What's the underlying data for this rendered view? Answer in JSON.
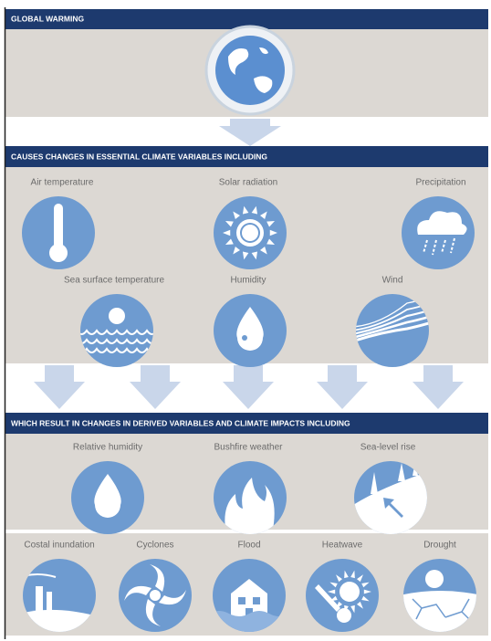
{
  "header": {
    "title": "GLOBAL WARMING"
  },
  "causes": {
    "title": "CAUSES CHANGES IN ESSENTIAL CLIMATE VARIABLES INCLUDING",
    "items": [
      "Air temperature",
      "Solar radiation",
      "Precipitation",
      "Sea surface temperature",
      "Humidity",
      "Wind"
    ]
  },
  "impacts": {
    "title": "WHICH RESULT IN CHANGES IN DERIVED VARIABLES AND CLIMATE IMPACTS INCLUDING",
    "items": [
      "Relative humidity",
      "Bushfire weather",
      "Sea-level rise",
      "Costal inundation",
      "Cyclones",
      "Flood",
      "Heatwave",
      "Drought"
    ]
  }
}
